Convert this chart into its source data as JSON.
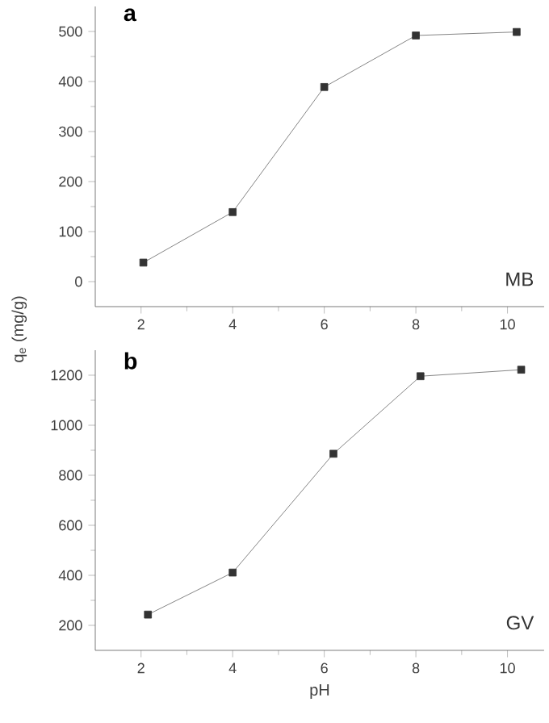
{
  "chart_data": [
    {
      "type": "line",
      "title": "a",
      "x": [
        2.05,
        4,
        6,
        8,
        10.2
      ],
      "series": [
        {
          "color": "#333333",
          "values": [
            38,
            139,
            389,
            492,
            499
          ]
        }
      ],
      "xlim": [
        1,
        10.8
      ],
      "ylim": [
        -50,
        550
      ],
      "xticks": [
        2,
        4,
        6,
        8,
        10
      ],
      "yticks": [
        0,
        100,
        200,
        300,
        400,
        500
      ],
      "marker": "square",
      "line_style": "solid",
      "annotations": [
        "MB"
      ]
    },
    {
      "type": "line",
      "title": "b",
      "x": [
        2.15,
        4,
        6.2,
        8.1,
        10.3
      ],
      "series": [
        {
          "color": "#333333",
          "values": [
            243,
            411,
            886,
            1196,
            1222
          ]
        }
      ],
      "xlim": [
        1,
        10.8
      ],
      "ylim": [
        100,
        1300
      ],
      "xticks": [
        2,
        4,
        6,
        8,
        10
      ],
      "yticks": [
        200,
        400,
        600,
        800,
        1000,
        1200
      ],
      "marker": "square",
      "line_style": "solid",
      "annotations": [
        "GV"
      ],
      "xlabel": "pH",
      "ylabel": "q$_{e}$ (mg/g)"
    }
  ]
}
